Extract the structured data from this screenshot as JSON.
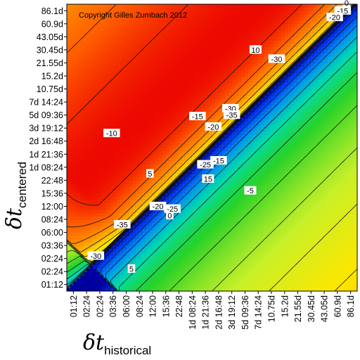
{
  "chart_data": {
    "type": "heatmap",
    "title": "",
    "copyright": "Copyright Gilles Zumbach 2012",
    "xlabel": {
      "symbol": "δt",
      "subscript": "historical"
    },
    "ylabel": {
      "symbol": "δt",
      "subscript": "centered"
    },
    "x_ticks": [
      "01:12",
      "02:24",
      "02:24",
      "03:36",
      "06:00",
      "08:24",
      "12:00",
      "15:36",
      "22:48",
      "1d 08:24",
      "1d 21:36",
      "2d 16:48",
      "3d 19:12",
      "5d 09:36",
      "7d 14:24",
      "10.75d",
      "15.2d",
      "21.55d",
      "30.45d",
      "43.05d",
      "60.9d",
      "86.1d"
    ],
    "y_ticks": [
      "86.1d",
      "60.9d",
      "43.05d",
      "30.45d",
      "21.55d",
      "15.2d",
      "10.75d",
      "7d 14:24",
      "5d 09:36",
      "3d 19:12",
      "2d 16:48",
      "1d 21:36",
      "1d 08:24",
      "22:48",
      "15:36",
      "12:00",
      "08:24",
      "06:00",
      "03:36",
      "02:24",
      "02:24",
      "01:12"
    ],
    "contour_labels": [
      {
        "text": "5",
        "x": 5.8,
        "y": 8.5
      },
      {
        "text": "5",
        "x": 4.4,
        "y": 1.2
      },
      {
        "text": "-5",
        "x": 13.4,
        "y": 7.2
      },
      {
        "text": "10",
        "x": 13.8,
        "y": 18.0
      },
      {
        "text": "-10",
        "x": 2.9,
        "y": 11.6
      },
      {
        "text": "15",
        "x": 10.2,
        "y": 8.1
      },
      {
        "text": "-15",
        "x": 9.4,
        "y": 12.9
      },
      {
        "text": "-15",
        "x": 11.0,
        "y": 9.5
      },
      {
        "text": "-15",
        "x": 20.4,
        "y": 21.0
      },
      {
        "text": "0",
        "x": 7.3,
        "y": 5.3
      },
      {
        "text": "0",
        "x": 20.7,
        "y": 21.6
      },
      {
        "text": "-20",
        "x": 6.4,
        "y": 6.0
      },
      {
        "text": "-20",
        "x": 10.6,
        "y": 12.1
      },
      {
        "text": "-20",
        "x": 19.8,
        "y": 20.5
      },
      {
        "text": "-25",
        "x": 7.5,
        "y": 5.8
      },
      {
        "text": "-25",
        "x": 10.0,
        "y": 9.2
      },
      {
        "text": "-30",
        "x": 1.7,
        "y": 2.2
      },
      {
        "text": "-30",
        "x": 11.9,
        "y": 13.5
      },
      {
        "text": "-30",
        "x": 15.4,
        "y": 17.3
      },
      {
        "text": "-35",
        "x": 3.7,
        "y": 4.6
      },
      {
        "text": "-35",
        "x": 12.0,
        "y": 13.0
      }
    ],
    "colormap": "blue-green-yellow-red",
    "grid": false,
    "legend": "none"
  }
}
